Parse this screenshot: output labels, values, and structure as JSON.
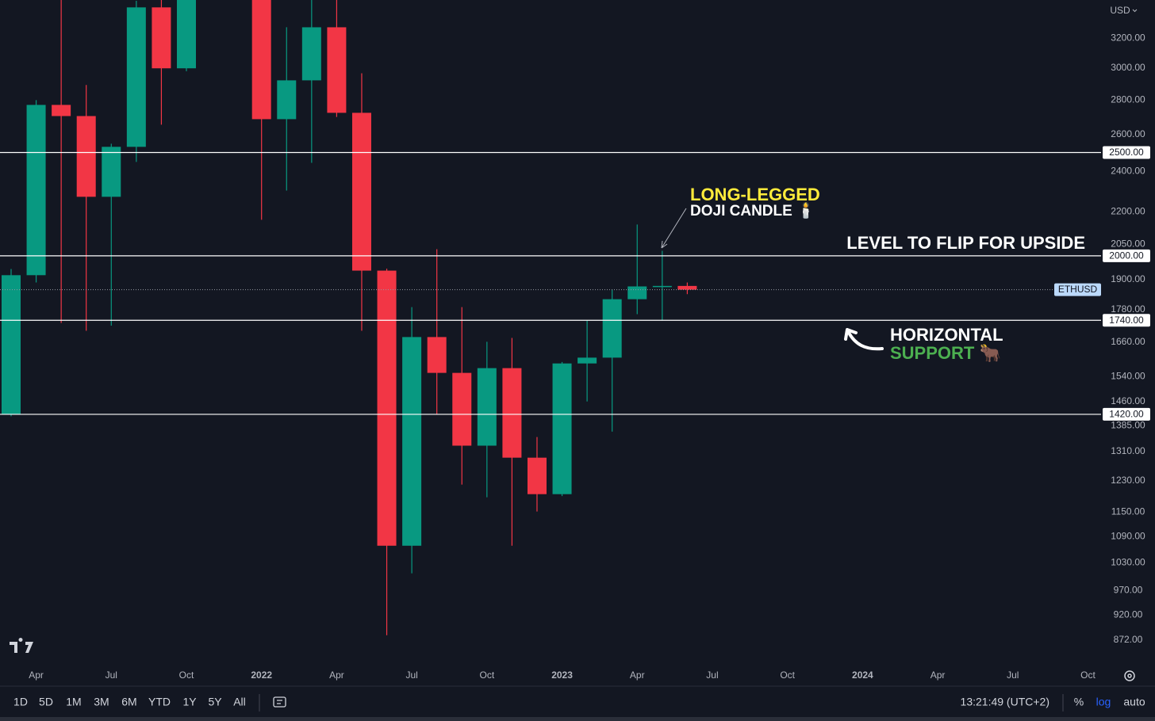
{
  "chart_data": {
    "type": "candlestick",
    "currency": "USD",
    "symbol": "ETHUSD",
    "log_scale": true,
    "grid": false,
    "up_color": "#089981",
    "down_color": "#f23645",
    "ylim": [
      828,
      3476
    ],
    "yticks": [
      {
        "value": 3200,
        "label": "3200.00"
      },
      {
        "value": 3000,
        "label": "3000.00"
      },
      {
        "value": 2800,
        "label": "2800.00"
      },
      {
        "value": 2600,
        "label": "2600.00"
      },
      {
        "value": 2400,
        "label": "2400.00"
      },
      {
        "value": 2200,
        "label": "2200.00"
      },
      {
        "value": 2050,
        "label": "2050.00"
      },
      {
        "value": 1900,
        "label": "1900.00"
      },
      {
        "value": 1780,
        "label": "1780.00"
      },
      {
        "value": 1660,
        "label": "1660.00"
      },
      {
        "value": 1540,
        "label": "1540.00"
      },
      {
        "value": 1460,
        "label": "1460.00"
      },
      {
        "value": 1385,
        "label": "1385.00"
      },
      {
        "value": 1310,
        "label": "1310.00"
      },
      {
        "value": 1230,
        "label": "1230.00"
      },
      {
        "value": 1150,
        "label": "1150.00"
      },
      {
        "value": 1090,
        "label": "1090.00"
      },
      {
        "value": 1030,
        "label": "1030.00"
      },
      {
        "value": 970,
        "label": "970.00"
      },
      {
        "value": 920,
        "label": "920.00"
      },
      {
        "value": 872,
        "label": "872.00"
      }
    ],
    "levels": [
      {
        "value": 2500,
        "label": "2500.00"
      },
      {
        "value": 2000,
        "label": "2000.00"
      },
      {
        "value": 1740,
        "label": "1740.00"
      },
      {
        "value": 1420,
        "label": "1420.00"
      }
    ],
    "categories": [
      null,
      "Apr",
      null,
      null,
      "Jul",
      null,
      null,
      "Oct",
      null,
      null,
      "2022",
      null,
      null,
      "Apr",
      null,
      null,
      "Jul",
      null,
      null,
      "Oct",
      null,
      null,
      "2023",
      null,
      null,
      "Apr",
      null,
      null,
      "Jul",
      null,
      null,
      "Oct",
      null,
      null,
      "2024",
      null,
      null,
      "Apr",
      null,
      null,
      "Jul",
      null,
      null,
      "Oct"
    ],
    "open": [
      1421,
      1918,
      2771,
      2705,
      2272,
      2531,
      3421,
      2999,
      null,
      null,
      3680,
      2687,
      2922,
      3277,
      2724,
      1937,
      1069,
      1678,
      1553,
      1327,
      1569,
      1293,
      1195,
      1585,
      1605,
      1821,
      1872,
      1874,
      null,
      null,
      null,
      null,
      null,
      null,
      null,
      null,
      null,
      null,
      null,
      null,
      null,
      null,
      null,
      null
    ],
    "high": [
      1944,
      2800,
      4380,
      2893,
      2548,
      3470,
      4000,
      4460,
      null,
      null,
      3900,
      3277,
      3480,
      3580,
      2967,
      1945,
      1790,
      2029,
      1790,
      1661,
      1675,
      1352,
      1590,
      1739,
      1859,
      2140,
      2022,
      1888,
      null,
      null,
      null,
      null,
      null,
      null,
      null,
      null,
      null,
      null,
      null,
      null,
      null,
      null,
      null,
      null
    ],
    "low": [
      1414,
      1888,
      1730,
      1701,
      1720,
      2450,
      2655,
      2980,
      null,
      null,
      2162,
      2303,
      2445,
      2700,
      1701,
      881,
      1007,
      1421,
      1220,
      1187,
      1069,
      1151,
      1190,
      1460,
      1368,
      1763,
      1739,
      1841,
      null,
      null,
      null,
      null,
      null,
      null,
      null,
      null,
      null,
      null,
      null,
      null,
      null,
      null,
      null,
      null
    ],
    "close": [
      1918,
      2771,
      2705,
      2272,
      2531,
      3421,
      2999,
      4300,
      null,
      null,
      2687,
      2922,
      3277,
      2724,
      1937,
      1069,
      1678,
      1553,
      1327,
      1569,
      1293,
      1195,
      1585,
      1605,
      1821,
      1872,
      1874,
      1859,
      null,
      null,
      null,
      null,
      null,
      null,
      null,
      null,
      null,
      null,
      null,
      null,
      null,
      null,
      null,
      null
    ],
    "annotations": {
      "doji_title": "LONG-LEGGED",
      "doji_subtitle": "DOJI CANDLE 🕯️",
      "flip_level": "LEVEL TO FLIP FOR UPSIDE",
      "support_title": "HORIZONTAL",
      "support_subtitle": "SUPPORT 🐂"
    },
    "toolbar": {
      "ranges": [
        "1D",
        "5D",
        "1M",
        "3M",
        "6M",
        "YTD",
        "1Y",
        "5Y",
        "All"
      ],
      "time": "13:21:49 (UTC+2)",
      "percent": "%",
      "log": "log",
      "auto": "auto"
    }
  }
}
